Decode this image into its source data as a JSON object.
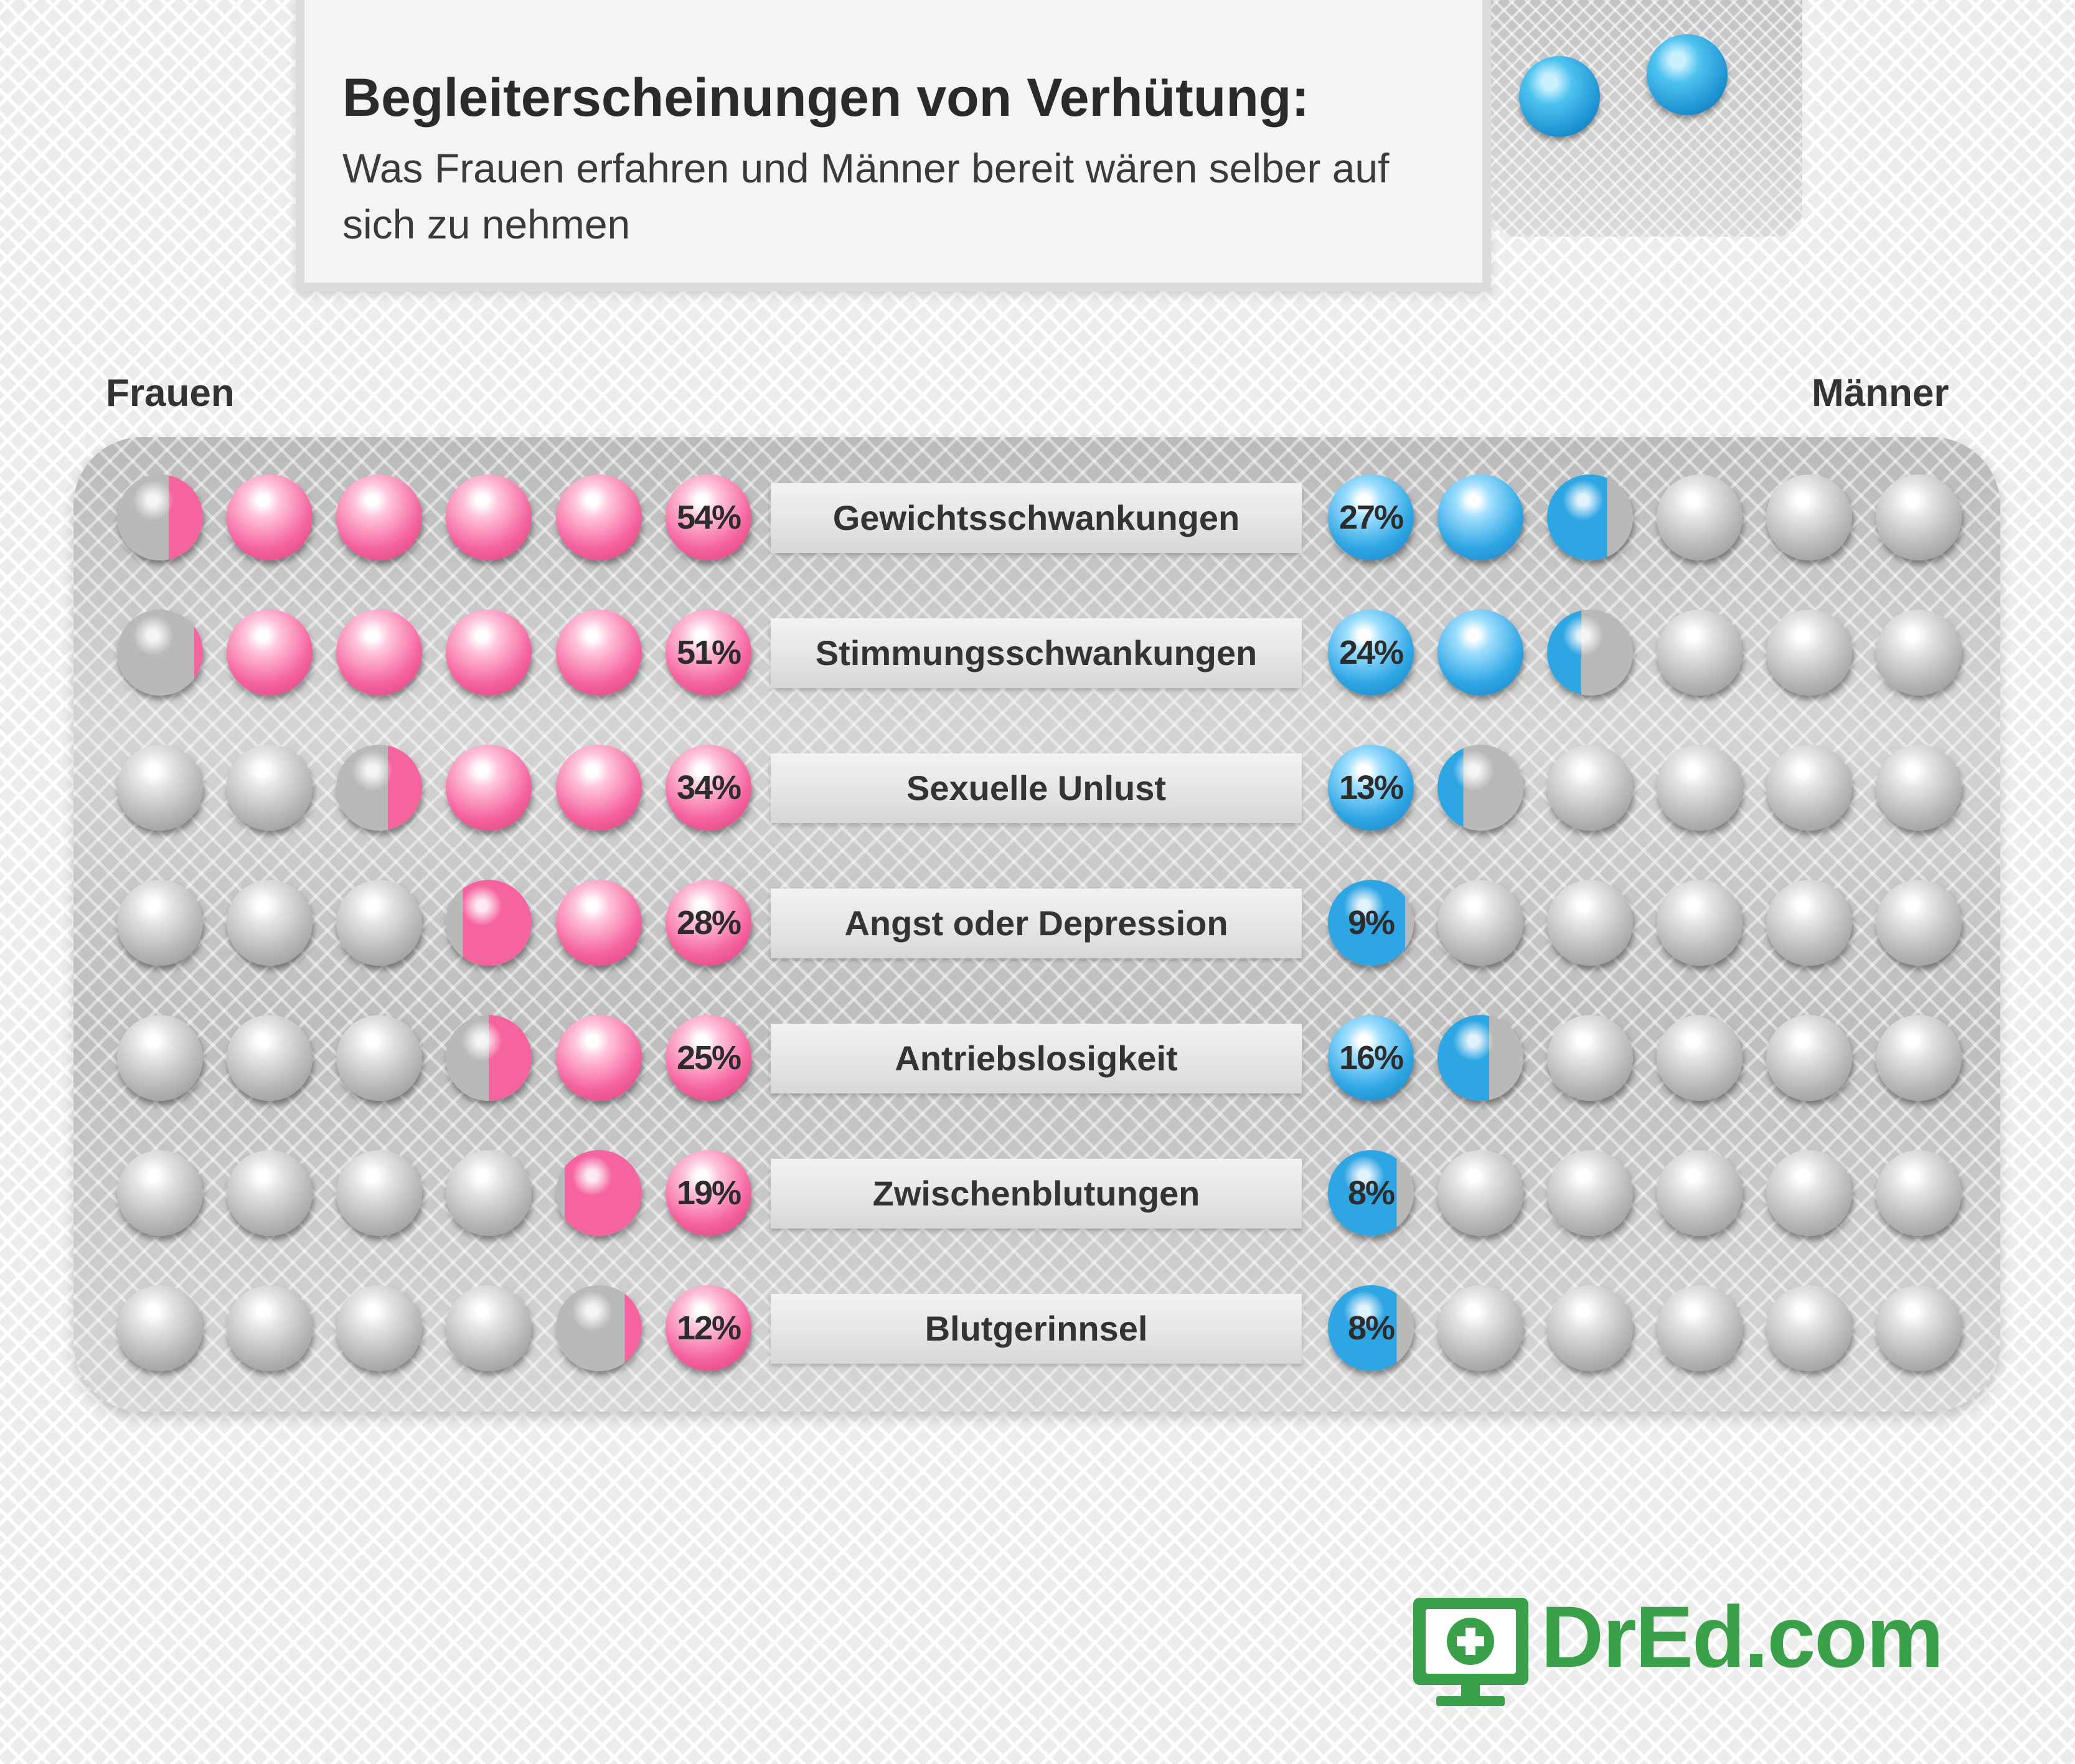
{
  "title": "Begleiterscheinungen von Verhütung:",
  "subtitle": "Was Frauen erfahren und Männer bereit wären selber auf sich zu nehmen",
  "labels": {
    "left": "Frauen",
    "right": "Männer"
  },
  "logo": {
    "text": "DrEd.com",
    "icon": "monitor-plus-icon",
    "color": "#3aa04a"
  },
  "colors": {
    "frauen": "#f5649f",
    "maenner": "#2fa6e4",
    "empty": "#b6b6b6"
  },
  "chart_data": {
    "type": "bar",
    "title": "Begleiterscheinungen von Verhütung:",
    "subtitle": "Was Frauen erfahren und Männer bereit wären selber auf sich zu nehmen",
    "categories": [
      "Gewichtsschwankungen",
      "Stimmungsschwankungen",
      "Sexuelle Unlust",
      "Angst oder Depression",
      "Antriebslosigkeit",
      "Zwischenblutungen",
      "Blutgerinnsel"
    ],
    "series": [
      {
        "name": "Frauen",
        "values": [
          54,
          51,
          34,
          28,
          25,
          19,
          12
        ],
        "labels": [
          "54%",
          "51%",
          "34%",
          "28%",
          "25%",
          "19%",
          "12%"
        ]
      },
      {
        "name": "Männer",
        "values": [
          27,
          24,
          13,
          9,
          16,
          8,
          8
        ],
        "labels": [
          "27%",
          "24%",
          "13%",
          "9%",
          "16%",
          "8%",
          "8%"
        ]
      }
    ],
    "ylim": [
      0,
      60
    ]
  }
}
